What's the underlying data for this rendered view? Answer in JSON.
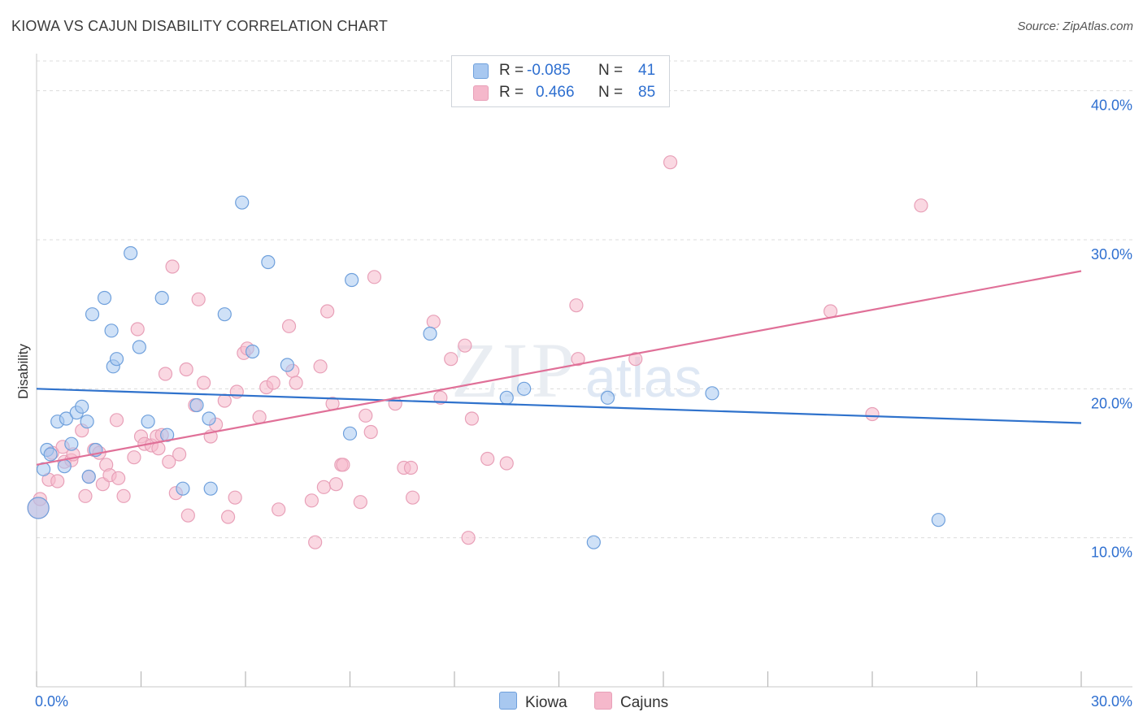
{
  "header": {
    "title": "KIOWA VS CAJUN DISABILITY CORRELATION CHART",
    "source": "Source: ZipAtlas.com"
  },
  "watermark": {
    "zip": "ZIP",
    "atlas": "atlas"
  },
  "legend": {
    "rows": [
      {
        "r_label": "R =",
        "r_value": "-0.085",
        "n_label": "N =",
        "n_value": "41",
        "color": "#a8c8f0"
      },
      {
        "r_label": "R =",
        "r_value": "0.466",
        "n_label": "N =",
        "n_value": "85",
        "color": "#f5b8cb"
      }
    ]
  },
  "bottom_legend": {
    "kiowa": "Kiowa",
    "cajuns": "Cajuns"
  },
  "colors": {
    "kiowa_fill": "#a8c8f0",
    "kiowa_stroke": "#6fa0dc",
    "kiowa_line": "#2f72cc",
    "cajun_fill": "#f5b8cb",
    "cajun_stroke": "#e8a0b8",
    "cajun_line": "#e07098",
    "axis_text": "#2e6fd0",
    "grid": "#dcdcdc"
  },
  "chart_data": {
    "type": "scatter",
    "title": "KIOWA VS CAJUN DISABILITY CORRELATION CHART",
    "xlabel": "",
    "ylabel": "Disability",
    "xlim": [
      0,
      30
    ],
    "ylim": [
      0,
      42
    ],
    "x_tick_labels": [
      "0.0%",
      "30.0%"
    ],
    "y_ticks": [
      10,
      20,
      30,
      40
    ],
    "y_tick_labels": [
      "10.0%",
      "20.0%",
      "30.0%",
      "40.0%"
    ],
    "grid": true,
    "legend_position": "top-center",
    "series": [
      {
        "name": "Kiowa",
        "r": -0.085,
        "n": 41,
        "trend": {
          "x": [
            0,
            30
          ],
          "y": [
            20.0,
            17.7
          ]
        },
        "points": [
          [
            0.05,
            12.0
          ],
          [
            0.2,
            14.6
          ],
          [
            0.3,
            15.9
          ],
          [
            0.4,
            15.6
          ],
          [
            0.6,
            17.8
          ],
          [
            0.8,
            14.8
          ],
          [
            0.85,
            18.0
          ],
          [
            1.0,
            16.3
          ],
          [
            1.15,
            18.4
          ],
          [
            1.3,
            18.8
          ],
          [
            1.45,
            17.8
          ],
          [
            1.5,
            14.1
          ],
          [
            1.6,
            25.0
          ],
          [
            1.7,
            15.9
          ],
          [
            1.95,
            26.1
          ],
          [
            2.15,
            23.9
          ],
          [
            2.2,
            21.5
          ],
          [
            2.3,
            22.0
          ],
          [
            2.7,
            29.1
          ],
          [
            2.95,
            22.8
          ],
          [
            3.2,
            17.8
          ],
          [
            3.6,
            26.1
          ],
          [
            3.75,
            16.9
          ],
          [
            4.2,
            13.3
          ],
          [
            4.6,
            18.9
          ],
          [
            4.95,
            18.0
          ],
          [
            5.0,
            13.3
          ],
          [
            5.4,
            25.0
          ],
          [
            5.9,
            32.5
          ],
          [
            6.2,
            22.5
          ],
          [
            6.65,
            28.5
          ],
          [
            7.2,
            21.6
          ],
          [
            9.0,
            17.0
          ],
          [
            9.05,
            27.3
          ],
          [
            11.3,
            23.7
          ],
          [
            13.5,
            19.4
          ],
          [
            14.0,
            20.0
          ],
          [
            16.0,
            9.7
          ],
          [
            16.4,
            19.4
          ],
          [
            19.4,
            19.7
          ],
          [
            25.9,
            11.2
          ]
        ]
      },
      {
        "name": "Cajuns",
        "r": 0.466,
        "n": 85,
        "trend": {
          "x": [
            0,
            30
          ],
          "y": [
            14.9,
            27.9
          ]
        },
        "points": [
          [
            0.05,
            12.0
          ],
          [
            0.1,
            12.6
          ],
          [
            0.35,
            13.9
          ],
          [
            0.45,
            15.7
          ],
          [
            0.6,
            13.8
          ],
          [
            0.75,
            16.1
          ],
          [
            0.8,
            15.1
          ],
          [
            1.0,
            15.2
          ],
          [
            1.05,
            15.6
          ],
          [
            1.3,
            17.2
          ],
          [
            1.4,
            12.8
          ],
          [
            1.5,
            14.1
          ],
          [
            1.65,
            15.9
          ],
          [
            1.8,
            15.7
          ],
          [
            1.9,
            13.6
          ],
          [
            2.0,
            14.9
          ],
          [
            2.1,
            14.2
          ],
          [
            2.3,
            17.9
          ],
          [
            2.35,
            14.0
          ],
          [
            2.5,
            12.8
          ],
          [
            2.8,
            15.4
          ],
          [
            2.9,
            24.0
          ],
          [
            3.0,
            16.8
          ],
          [
            3.1,
            16.3
          ],
          [
            3.3,
            16.2
          ],
          [
            3.45,
            16.8
          ],
          [
            3.5,
            16.0
          ],
          [
            3.6,
            16.9
          ],
          [
            3.7,
            21.0
          ],
          [
            3.8,
            15.1
          ],
          [
            3.9,
            28.2
          ],
          [
            4.0,
            13.0
          ],
          [
            4.1,
            15.6
          ],
          [
            4.3,
            21.3
          ],
          [
            4.35,
            11.5
          ],
          [
            4.55,
            18.9
          ],
          [
            4.65,
            26.0
          ],
          [
            4.8,
            20.4
          ],
          [
            5.0,
            16.8
          ],
          [
            5.15,
            17.6
          ],
          [
            5.4,
            19.2
          ],
          [
            5.5,
            11.4
          ],
          [
            5.7,
            12.7
          ],
          [
            5.75,
            19.8
          ],
          [
            5.95,
            22.4
          ],
          [
            6.05,
            22.7
          ],
          [
            6.4,
            18.1
          ],
          [
            6.6,
            20.1
          ],
          [
            6.8,
            20.4
          ],
          [
            6.95,
            11.9
          ],
          [
            7.25,
            24.2
          ],
          [
            7.35,
            21.2
          ],
          [
            7.45,
            20.4
          ],
          [
            7.9,
            12.5
          ],
          [
            8.0,
            9.7
          ],
          [
            8.15,
            21.5
          ],
          [
            8.25,
            13.4
          ],
          [
            8.35,
            25.2
          ],
          [
            8.5,
            19.0
          ],
          [
            8.6,
            13.6
          ],
          [
            8.75,
            14.9
          ],
          [
            8.8,
            14.9
          ],
          [
            9.3,
            12.4
          ],
          [
            9.45,
            18.2
          ],
          [
            9.6,
            17.1
          ],
          [
            9.7,
            27.5
          ],
          [
            10.3,
            19.0
          ],
          [
            10.55,
            14.7
          ],
          [
            10.75,
            14.7
          ],
          [
            10.8,
            12.7
          ],
          [
            11.4,
            24.5
          ],
          [
            11.6,
            19.4
          ],
          [
            11.9,
            22.0
          ],
          [
            12.3,
            22.9
          ],
          [
            12.4,
            10.0
          ],
          [
            12.5,
            18.0
          ],
          [
            12.95,
            15.3
          ],
          [
            13.5,
            15.0
          ],
          [
            15.5,
            25.6
          ],
          [
            15.55,
            22.0
          ],
          [
            17.2,
            22.0
          ],
          [
            18.2,
            35.2
          ],
          [
            22.8,
            25.2
          ],
          [
            24.0,
            18.3
          ],
          [
            25.4,
            32.3
          ]
        ]
      }
    ]
  }
}
